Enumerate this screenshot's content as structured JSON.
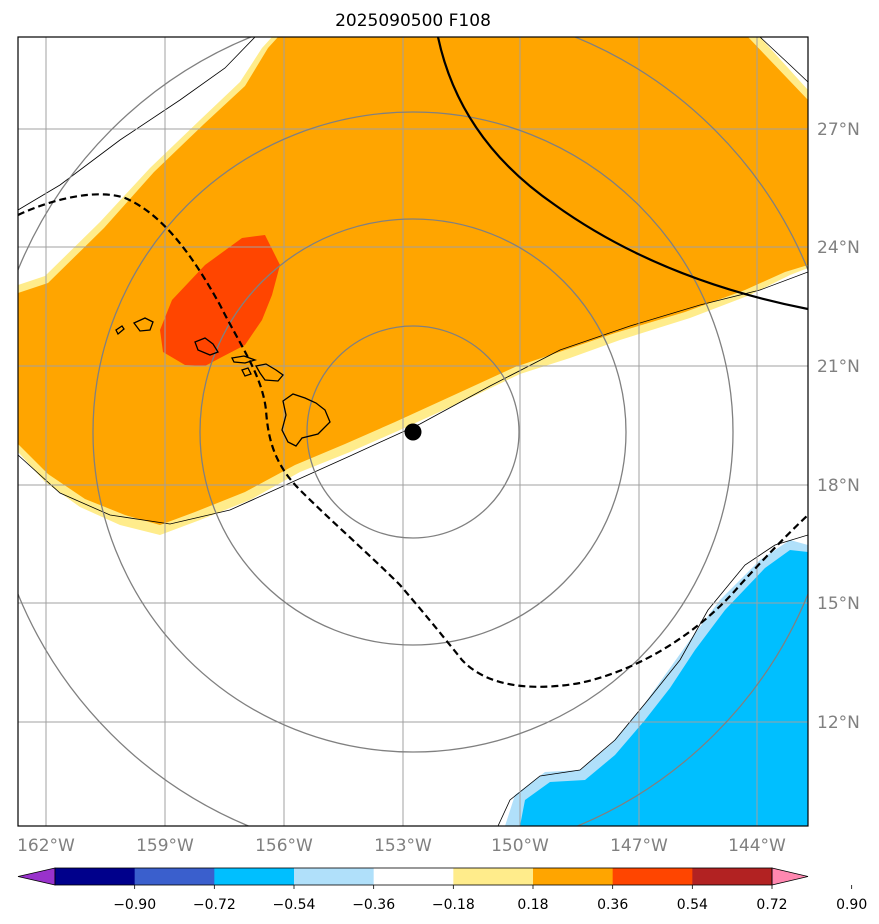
{
  "title": "2025090500 F108",
  "map": {
    "lon_range": [
      -162.7,
      -142.2
    ],
    "lat_range": [
      9.2,
      29.2
    ],
    "lat_labels": [
      "27°N",
      "24°N",
      "21°N",
      "18°N",
      "15°N",
      "12°N"
    ],
    "lon_labels": [
      "162°W",
      "159°W",
      "156°W",
      "153°W",
      "150°W",
      "147°W",
      "144°W"
    ],
    "gridline_color": "#a0a0a0",
    "storm_center": {
      "lon": -152.75,
      "lat": 19.3
    },
    "range_rings_count": 4
  },
  "colorbar": {
    "tick_labels": [
      "−0.90",
      "−0.72",
      "−0.54",
      "−0.36",
      "−0.18",
      "0.18",
      "0.36",
      "0.54",
      "0.72",
      "0.90"
    ],
    "colors": [
      "#9932cc",
      "#00008b",
      "#3a5fcd",
      "#00bfff",
      "#b0e0fa",
      "#ffffff",
      "#ffec8b",
      "#ffa500",
      "#ff4500",
      "#b22222",
      "#ff88b0"
    ]
  }
}
